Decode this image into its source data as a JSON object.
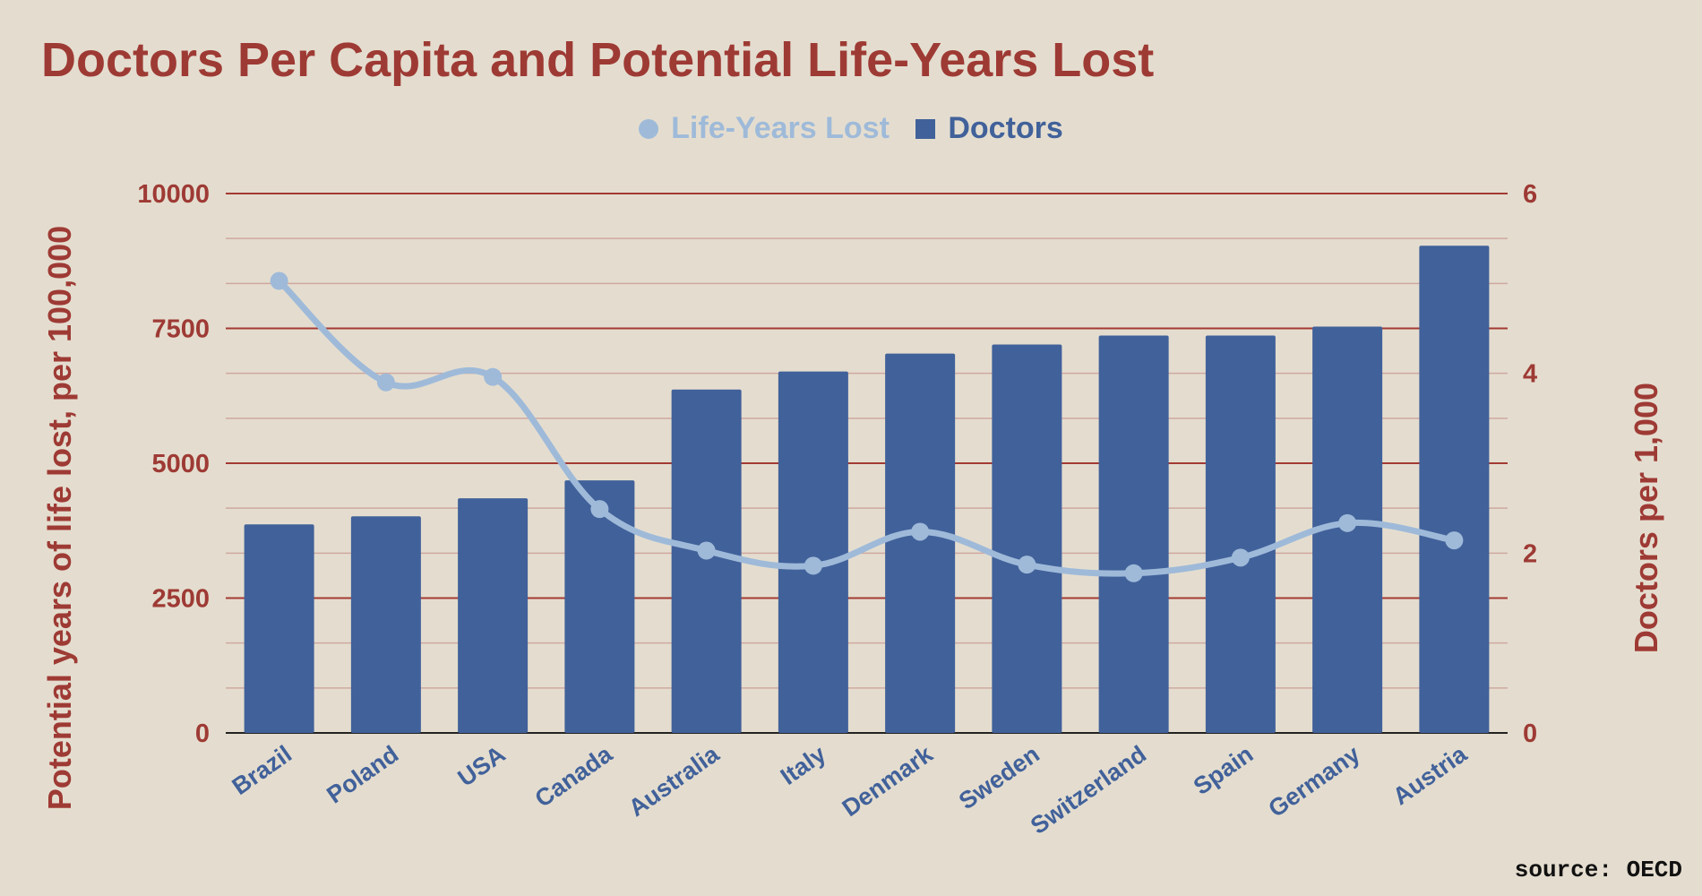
{
  "chart_data": {
    "type": "bar",
    "title": "Doctors Per Capita and Potential Life-Years Lost",
    "categories": [
      "Brazil",
      "Poland",
      "USA",
      "Canada",
      "Australia",
      "Italy",
      "Denmark",
      "Sweden",
      "Switzerland",
      "Spain",
      "Germany",
      "Austria"
    ],
    "series": [
      {
        "name": "Life-Years Lost",
        "type": "line",
        "axis": "left",
        "values": [
          8380,
          6500,
          6600,
          4150,
          3380,
          3100,
          3730,
          3120,
          2960,
          3250,
          3890,
          3570
        ]
      },
      {
        "name": "Doctors",
        "type": "bar",
        "axis": "right",
        "values": [
          2.32,
          2.41,
          2.61,
          2.81,
          3.82,
          4.02,
          4.22,
          4.32,
          4.42,
          4.42,
          4.52,
          5.42
        ]
      }
    ],
    "ylabel_left": "Potential years of life lost, per 100,000",
    "ylabel_right": "Doctors per 1,000",
    "ylim_left": [
      0,
      10000
    ],
    "ylim_right": [
      0,
      6
    ],
    "yticks_left": [
      "0",
      "2500",
      "5000",
      "7500",
      "10000"
    ],
    "yticks_right": [
      "0",
      "2",
      "4",
      "6"
    ],
    "legend": [
      "Life-Years Lost",
      "Doctors"
    ],
    "legend_position": "top-center",
    "grid": true,
    "source": "source: OECD"
  },
  "colors": {
    "background": "#e4ddcf",
    "bar": "#41619a",
    "line": "#9fbad9",
    "accent": "#9e3a34"
  }
}
